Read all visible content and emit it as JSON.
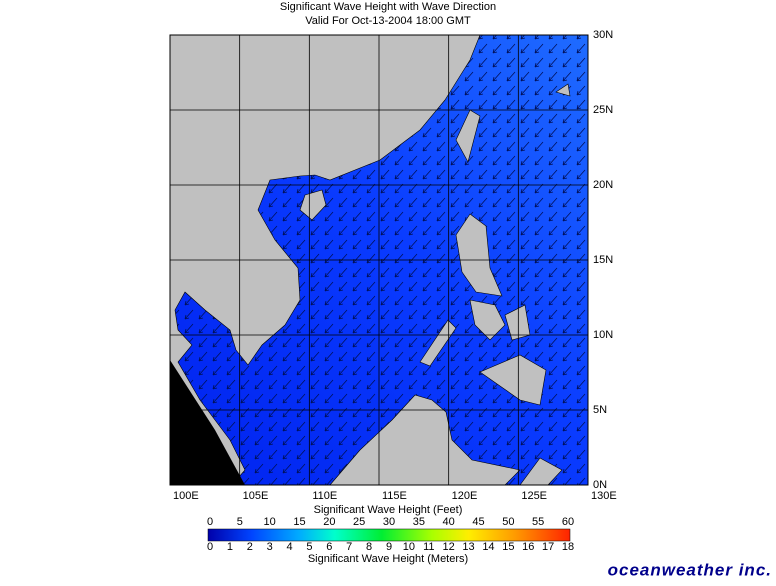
{
  "header": {
    "title": "Significant Wave Height with Wave Direction",
    "subtitle": "Valid For Oct-13-2004 18:00 GMT"
  },
  "map": {
    "lat_labels": [
      "0N",
      "5N",
      "10N",
      "15N",
      "20N",
      "25N",
      "30N"
    ],
    "lon_labels": [
      "100E",
      "105E",
      "110E",
      "115E",
      "120E",
      "125E",
      "130E"
    ]
  },
  "colorbar": {
    "feet_title": "Significant Wave Height (Feet)",
    "feet_ticks": [
      0,
      5,
      10,
      15,
      20,
      25,
      30,
      35,
      40,
      45,
      50,
      55,
      60
    ],
    "meters_title": "Significant Wave Height (Meters)",
    "meters_ticks": [
      0,
      1,
      2,
      3,
      4,
      5,
      6,
      7,
      8,
      9,
      10,
      11,
      12,
      13,
      14,
      15,
      16,
      17,
      18
    ]
  },
  "brand": "oceanweather inc."
}
